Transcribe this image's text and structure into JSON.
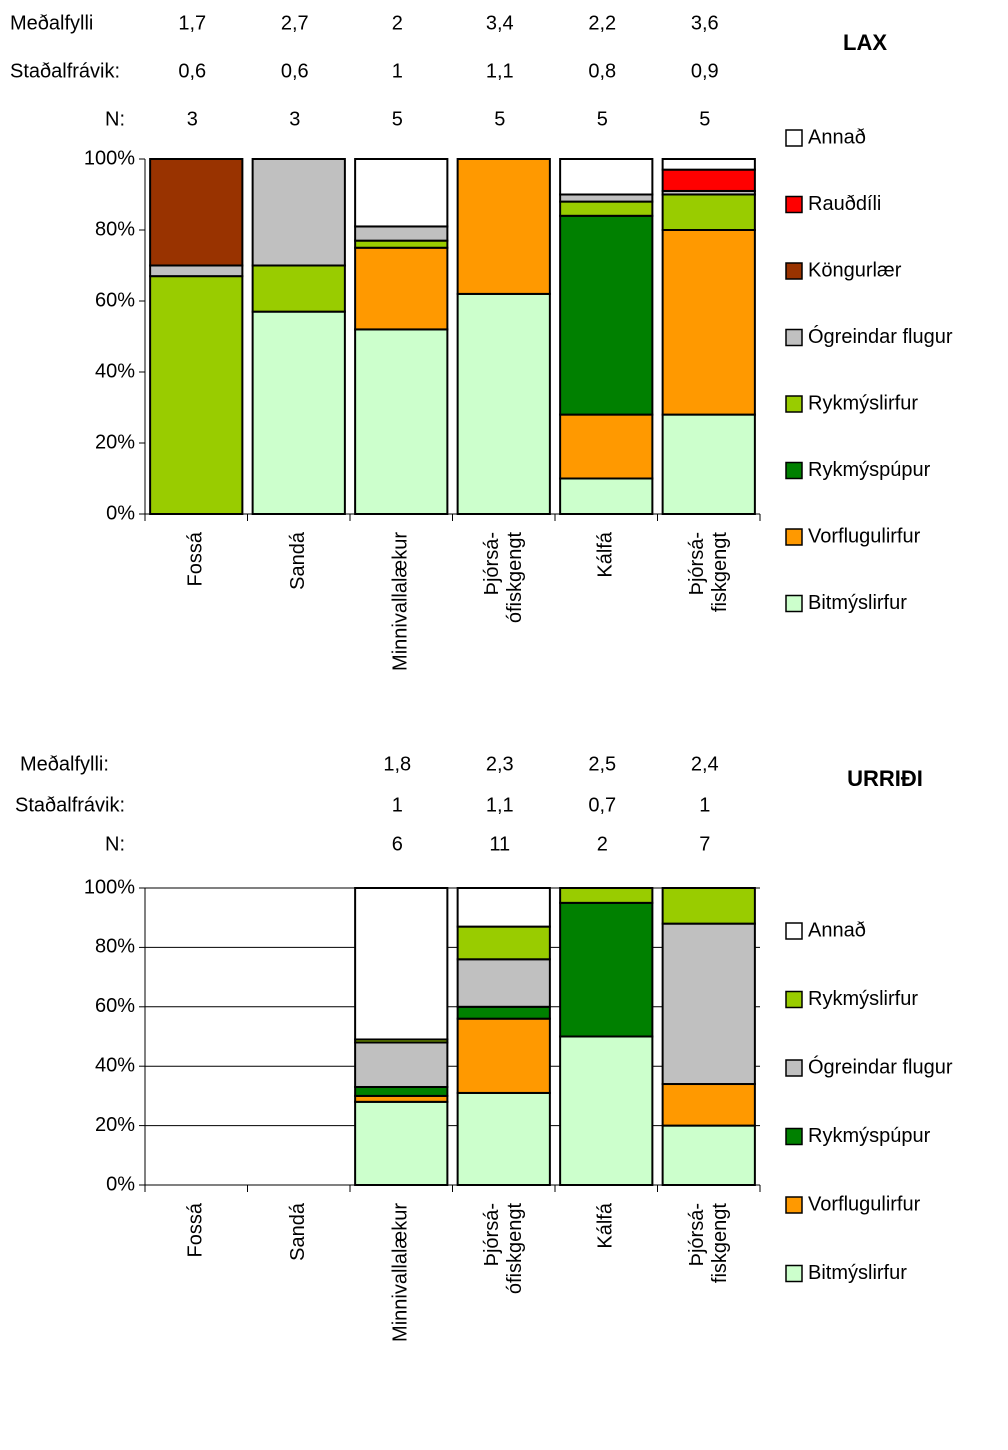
{
  "chart_data": [
    {
      "type": "bar",
      "stacked": true,
      "title": "LAX",
      "grid": false,
      "legend": "right",
      "categories": [
        "Fossá",
        "Sandá",
        "Minnivallalækur",
        "Þjórsá-ófiskgengt",
        "Kálfá",
        "Þjórsá-fiskgengt"
      ],
      "stats": [
        {
          "label": "Meðalfylli",
          "values": [
            "1,7",
            "2,7",
            "2",
            "3,4",
            "2,2",
            "3,6"
          ]
        },
        {
          "label": "Staðalfrávik:",
          "values": [
            "0,6",
            "0,6",
            "1",
            "1,1",
            "0,8",
            "0,9"
          ]
        },
        {
          "label": "N:",
          "values": [
            "3",
            "3",
            "5",
            "5",
            "5",
            "5"
          ]
        }
      ],
      "ylim": [
        0,
        100
      ],
      "yticks": [
        {
          "value": 0,
          "label": "0%"
        },
        {
          "value": 20,
          "label": "20%"
        },
        {
          "value": 40,
          "label": "40%"
        },
        {
          "value": 60,
          "label": "60%"
        },
        {
          "value": 80,
          "label": "80%"
        },
        {
          "value": 100,
          "label": "100%"
        }
      ],
      "series": [
        {
          "name": "Bitmýslirfur",
          "color": "#ccffcc",
          "values": [
            0,
            57,
            52,
            62,
            10,
            28
          ]
        },
        {
          "name": "Vorflugulirfur",
          "color": "#ff9900",
          "values": [
            0,
            0,
            23,
            38,
            18,
            52
          ]
        },
        {
          "name": "Rykmýspúpur",
          "color": "#008000",
          "values": [
            0,
            0,
            0,
            0,
            56,
            0
          ]
        },
        {
          "name": "Rykmýslirfur",
          "color": "#99cc00",
          "values": [
            67,
            13,
            2,
            0,
            4,
            10
          ]
        },
        {
          "name": "Ógreindar flugur",
          "color": "#c0c0c0",
          "values": [
            3,
            30,
            4,
            0,
            2,
            1
          ]
        },
        {
          "name": "Köngurlær",
          "color": "#993300",
          "values": [
            30,
            0,
            0,
            0,
            0,
            0
          ]
        },
        {
          "name": "Rauðdíli",
          "color": "#ff0000",
          "values": [
            0,
            0,
            0,
            0,
            0,
            6
          ]
        },
        {
          "name": "Annað",
          "color": "#ffffff",
          "values": [
            0,
            0,
            19,
            0,
            10,
            3
          ]
        }
      ]
    },
    {
      "type": "bar",
      "stacked": true,
      "title": "URRIÐI",
      "grid": true,
      "legend": "right",
      "categories": [
        "Fossá",
        "Sandá",
        "Minnivallalækur",
        "Þjórsá-ófiskgengt",
        "Kálfá",
        "Þjórsá-fiskgengt"
      ],
      "stats": [
        {
          "label": "Meðalfylli:",
          "values": [
            null,
            null,
            "1,8",
            "2,3",
            "2,5",
            "2,4"
          ]
        },
        {
          "label": "Staðalfrávik:",
          "values": [
            null,
            null,
            "1",
            "1,1",
            "0,7",
            "1"
          ]
        },
        {
          "label": "N:",
          "values": [
            null,
            null,
            "6",
            "11",
            "2",
            "7"
          ]
        }
      ],
      "ylim": [
        0,
        100
      ],
      "yticks": [
        {
          "value": 0,
          "label": "0%"
        },
        {
          "value": 20,
          "label": "20%"
        },
        {
          "value": 40,
          "label": "40%"
        },
        {
          "value": 60,
          "label": "60%"
        },
        {
          "value": 80,
          "label": "80%"
        },
        {
          "value": 100,
          "label": "100%"
        }
      ],
      "series": [
        {
          "name": "Bitmýslirfur",
          "color": "#ccffcc",
          "values": [
            null,
            null,
            28,
            31,
            50,
            20
          ]
        },
        {
          "name": "Vorflugulirfur",
          "color": "#ff9900",
          "values": [
            null,
            null,
            2,
            25,
            0,
            14
          ]
        },
        {
          "name": "Rykmýspúpur",
          "color": "#008000",
          "values": [
            null,
            null,
            3,
            4,
            45,
            0
          ]
        },
        {
          "name": "Ógreindar flugur",
          "color": "#c0c0c0",
          "values": [
            null,
            null,
            15,
            16,
            0,
            54
          ]
        },
        {
          "name": "Rykmýslirfur",
          "color": "#99cc00",
          "values": [
            null,
            null,
            1,
            11,
            5,
            12
          ]
        },
        {
          "name": "Annað",
          "color": "#ffffff",
          "values": [
            null,
            null,
            51,
            13,
            0,
            0
          ]
        }
      ]
    }
  ]
}
